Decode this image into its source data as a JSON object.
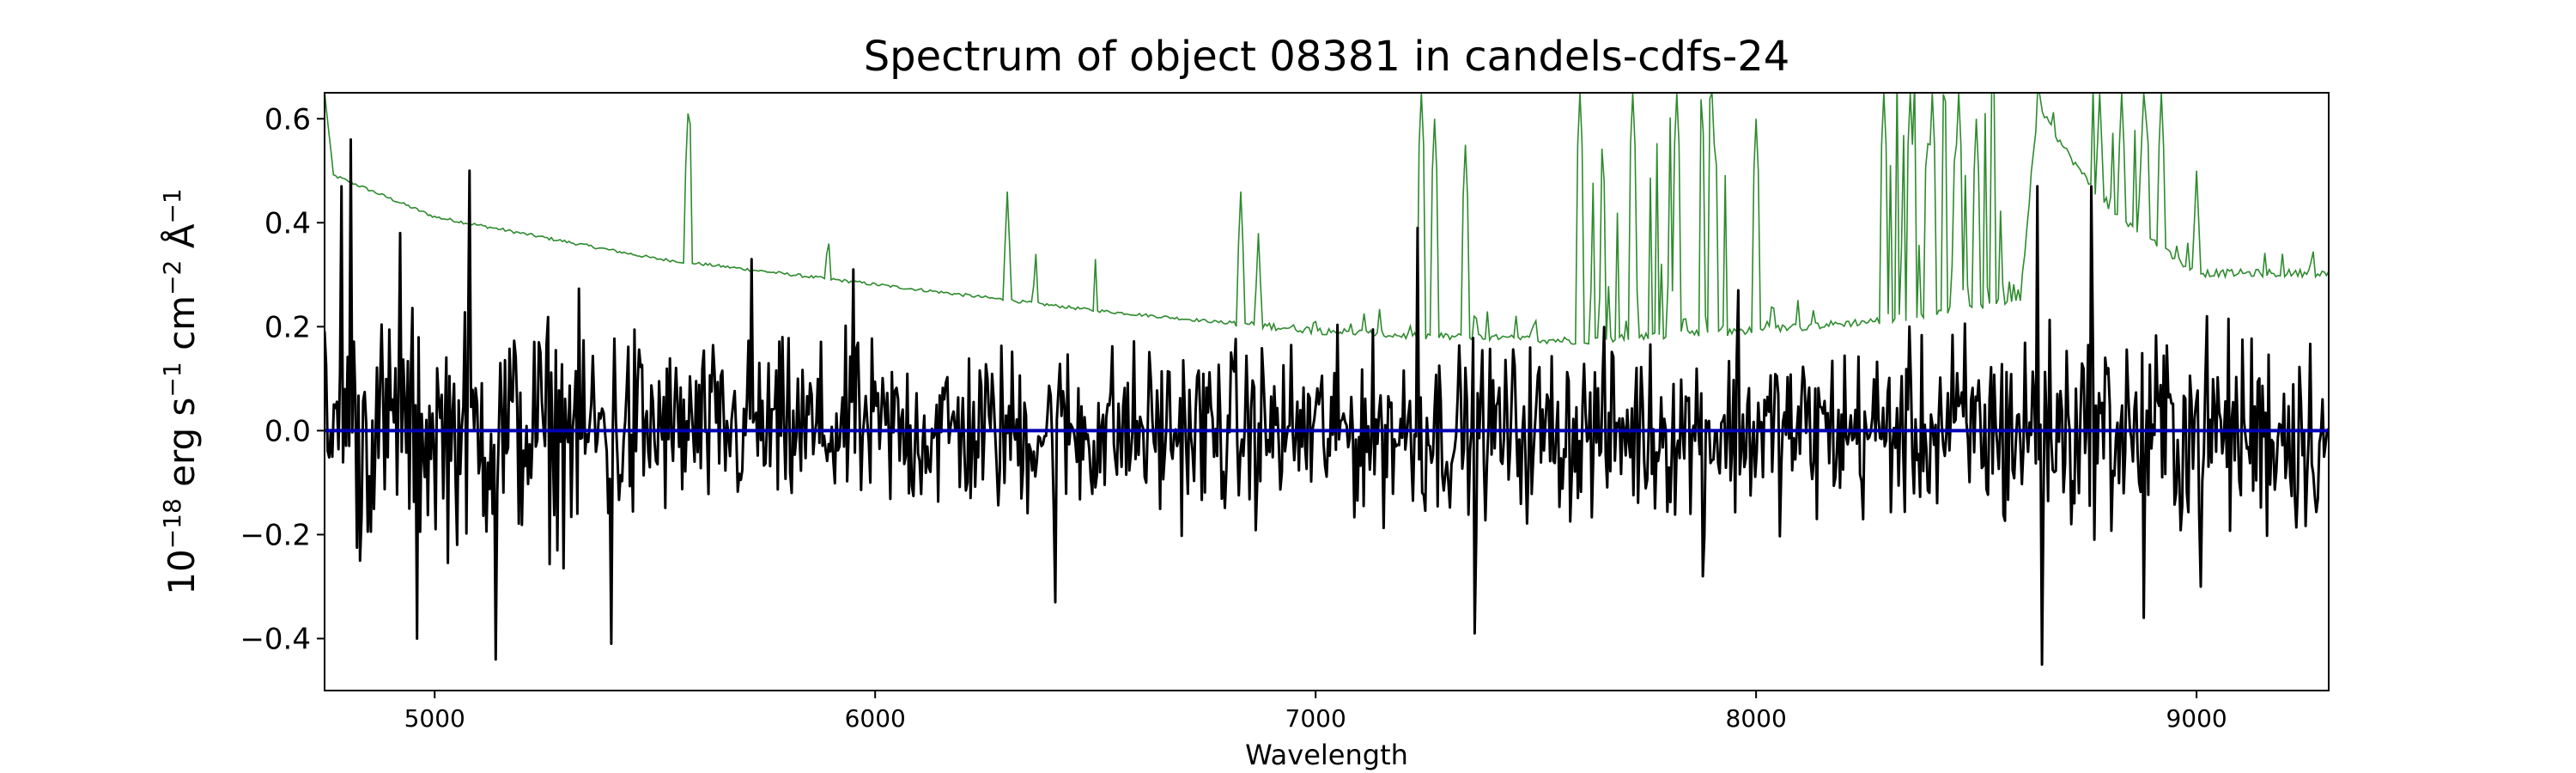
{
  "chart_data": {
    "type": "line",
    "title": "Spectrum of object 08381 in candels-cdfs-24",
    "xlabel": "Wavelength",
    "ylabel_base": "10",
    "ylabel_exp": "−18",
    "ylabel_rest": [
      " erg s",
      "−1",
      " cm",
      "−2",
      " Å",
      "−1"
    ],
    "xlim": [
      4750,
      9300
    ],
    "ylim": [
      -0.5,
      0.65
    ],
    "xticks": [
      5000,
      6000,
      7000,
      8000,
      9000
    ],
    "xtick_labels": [
      "5000",
      "6000",
      "7000",
      "8000",
      "9000"
    ],
    "yticks": [
      -0.4,
      -0.2,
      0.0,
      0.2,
      0.4,
      0.6
    ],
    "ytick_labels": [
      "−0.4",
      "−0.2",
      "0.0",
      "0.2",
      "0.4",
      "0.6"
    ],
    "grid": false,
    "colors": {
      "flux": "#000000",
      "error": "#2e8b2e",
      "zero": "#0000b4"
    },
    "series": [
      {
        "role": "flux",
        "wavelength_range": [
          4750,
          9300
        ],
        "noise_amplitude": 0.13,
        "spikes": [
          {
            "x": 4790,
            "y": 0.47
          },
          {
            "x": 4810,
            "y": 0.56
          },
          {
            "x": 4830,
            "y": -0.25
          },
          {
            "x": 4920,
            "y": 0.38
          },
          {
            "x": 4960,
            "y": -0.4
          },
          {
            "x": 5080,
            "y": 0.5
          },
          {
            "x": 5140,
            "y": -0.44
          },
          {
            "x": 5400,
            "y": -0.41
          },
          {
            "x": 5720,
            "y": 0.33
          },
          {
            "x": 5950,
            "y": 0.31
          },
          {
            "x": 6410,
            "y": -0.33
          },
          {
            "x": 7230,
            "y": 0.39
          },
          {
            "x": 7360,
            "y": -0.39
          },
          {
            "x": 7880,
            "y": -0.28
          },
          {
            "x": 7960,
            "y": 0.27
          },
          {
            "x": 8640,
            "y": 0.47
          },
          {
            "x": 8650,
            "y": -0.45
          },
          {
            "x": 8760,
            "y": 0.47
          },
          {
            "x": 8880,
            "y": -0.36
          },
          {
            "x": 9010,
            "y": -0.3
          }
        ]
      },
      {
        "role": "error",
        "baseline": [
          {
            "x": 4750,
            "y": 0.65
          },
          {
            "x": 4770,
            "y": 0.49
          },
          {
            "x": 4800,
            "y": 0.48
          },
          {
            "x": 5000,
            "y": 0.41
          },
          {
            "x": 5500,
            "y": 0.33
          },
          {
            "x": 6000,
            "y": 0.28
          },
          {
            "x": 6500,
            "y": 0.23
          },
          {
            "x": 7000,
            "y": 0.19
          },
          {
            "x": 7200,
            "y": 0.18
          },
          {
            "x": 7600,
            "y": 0.17
          },
          {
            "x": 8000,
            "y": 0.19
          },
          {
            "x": 8300,
            "y": 0.21
          },
          {
            "x": 8600,
            "y": 0.25
          },
          {
            "x": 8640,
            "y": 0.62
          },
          {
            "x": 8700,
            "y": 0.54
          },
          {
            "x": 8800,
            "y": 0.42
          },
          {
            "x": 9000,
            "y": 0.3
          },
          {
            "x": 9300,
            "y": 0.3
          }
        ],
        "emission_lines": [
          {
            "x": 5577,
            "y": 0.65
          },
          {
            "x": 5893,
            "y": 0.4
          },
          {
            "x": 6300,
            "y": 0.46
          },
          {
            "x": 6364,
            "y": 0.36
          },
          {
            "x": 6500,
            "y": 0.33
          },
          {
            "x": 6830,
            "y": 0.46
          },
          {
            "x": 6870,
            "y": 0.38
          },
          {
            "x": 7240,
            "y": 0.65
          },
          {
            "x": 7270,
            "y": 0.6
          },
          {
            "x": 7340,
            "y": 0.55
          },
          {
            "x": 7600,
            "y": 0.65
          },
          {
            "x": 7720,
            "y": 0.65
          },
          {
            "x": 7820,
            "y": 0.65
          },
          {
            "x": 7900,
            "y": 0.65
          },
          {
            "x": 8000,
            "y": 0.6
          },
          {
            "x": 8290,
            "y": 0.65
          },
          {
            "x": 8350,
            "y": 0.65
          },
          {
            "x": 8400,
            "y": 0.65
          },
          {
            "x": 8460,
            "y": 0.65
          },
          {
            "x": 8500,
            "y": 0.6
          },
          {
            "x": 8780,
            "y": 0.65
          },
          {
            "x": 8830,
            "y": 0.65
          },
          {
            "x": 8880,
            "y": 0.65
          },
          {
            "x": 8920,
            "y": 0.65
          },
          {
            "x": 9000,
            "y": 0.5
          }
        ]
      },
      {
        "role": "zero",
        "y": 0.0
      }
    ]
  }
}
